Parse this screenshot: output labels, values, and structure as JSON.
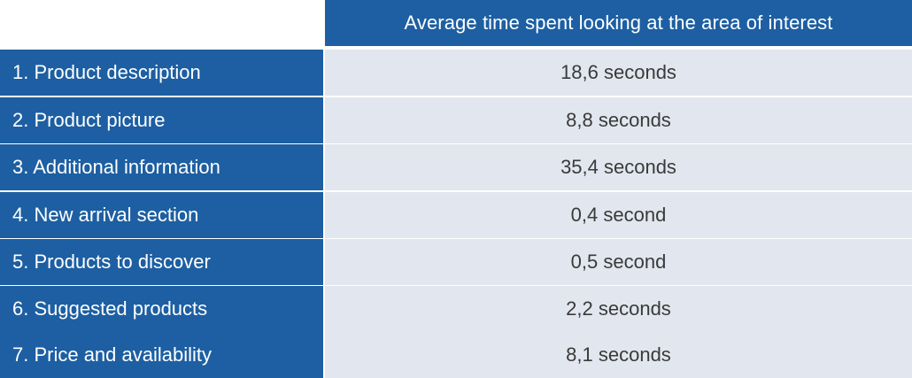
{
  "chart_data": {
    "type": "table",
    "columns": [
      "",
      "Average time spent looking at the area of interest"
    ],
    "rows": [
      {
        "label": "1. Product description",
        "value_text": "18,6 seconds",
        "value": 18.6
      },
      {
        "label": "2. Product picture",
        "value_text": "8,8 seconds",
        "value": 8.8
      },
      {
        "label": "3. Additional information",
        "value_text": "35,4 seconds",
        "value": 35.4
      },
      {
        "label": "4. New arrival section",
        "value_text": "0,4 second",
        "value": 0.4
      },
      {
        "label": "5. Products to discover",
        "value_text": "0,5 second",
        "value": 0.5
      },
      {
        "label": "6. Suggested products",
        "value_text": "2,2 seconds",
        "value": 2.2
      },
      {
        "label": "7. Price and availability",
        "value_text": "8,1 seconds",
        "value": 8.1
      }
    ]
  },
  "colors": {
    "header_bg": "#1d5fa2",
    "label_bg": "#1d5fa2",
    "value_bg": "#e2e6ee",
    "label_text": "#ffffff",
    "value_text": "#3a3a3a"
  }
}
